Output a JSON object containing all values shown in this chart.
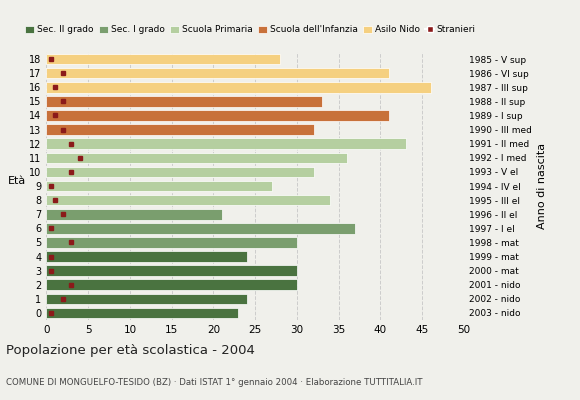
{
  "ages": [
    18,
    17,
    16,
    15,
    14,
    13,
    12,
    11,
    10,
    9,
    8,
    7,
    6,
    5,
    4,
    3,
    2,
    1,
    0
  ],
  "anno_nascita": [
    "1985 - V sup",
    "1986 - VI sup",
    "1987 - III sup",
    "1988 - II sup",
    "1989 - I sup",
    "1990 - III med",
    "1991 - II med",
    "1992 - I med",
    "1993 - V el",
    "1994 - IV el",
    "1995 - III el",
    "1996 - II el",
    "1997 - I el",
    "1998 - mat",
    "1999 - mat",
    "2000 - mat",
    "2001 - nido",
    "2002 - nido",
    "2003 - nido"
  ],
  "bar_values": [
    23,
    24,
    30,
    30,
    24,
    30,
    37,
    21,
    34,
    27,
    32,
    36,
    43,
    32,
    41,
    33,
    46,
    41,
    28
  ],
  "stranieri_values": [
    0.5,
    2,
    3,
    0.5,
    0.5,
    3,
    0.5,
    2,
    1,
    0.5,
    3,
    4,
    3,
    2,
    1,
    2,
    1,
    2,
    0.5
  ],
  "bar_colors": [
    "#4a7340",
    "#4a7340",
    "#4a7340",
    "#4a7340",
    "#4a7340",
    "#7a9e6e",
    "#7a9e6e",
    "#7a9e6e",
    "#b5cfa0",
    "#b5cfa0",
    "#b5cfa0",
    "#b5cfa0",
    "#b5cfa0",
    "#c8713a",
    "#c8713a",
    "#c8713a",
    "#f5d080",
    "#f5d080",
    "#f5d080"
  ],
  "legend_labels": [
    "Sec. II grado",
    "Sec. I grado",
    "Scuola Primaria",
    "Scuola dell'Infanzia",
    "Asilo Nido",
    "Stranieri"
  ],
  "legend_colors": [
    "#4a7340",
    "#7a9e6e",
    "#b5cfa0",
    "#c8713a",
    "#f5d080",
    "#8b1a1a"
  ],
  "stranieri_color": "#8b1a1a",
  "ylabel_left": "Età",
  "ylabel_right": "Anno di nascita",
  "title": "Popolazione per età scolastica - 2004",
  "subtitle": "COMUNE DI MONGUELFO-TESIDO (BZ) · Dati ISTAT 1° gennaio 2004 · Elaborazione TUTTITALIA.IT",
  "xlim": [
    0,
    50
  ],
  "xticks": [
    0,
    5,
    10,
    15,
    20,
    25,
    30,
    35,
    40,
    45,
    50
  ],
  "background_color": "#f0f0eb",
  "grid_color": "#cccccc"
}
